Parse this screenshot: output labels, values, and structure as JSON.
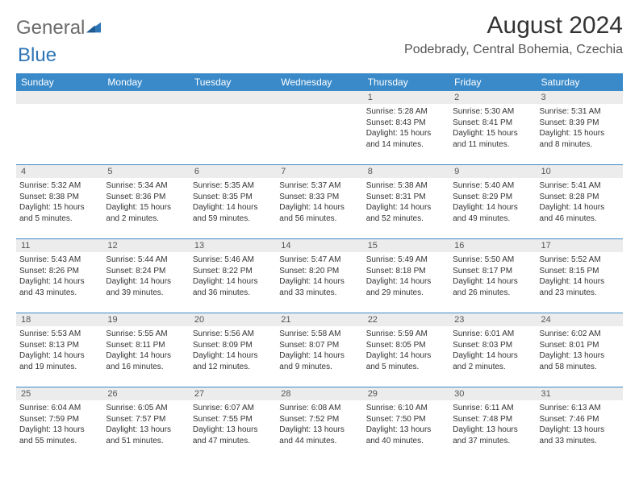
{
  "logo": {
    "general": "General",
    "blue": "Blue"
  },
  "title": "August 2024",
  "location": "Podebrady, Central Bohemia, Czechia",
  "weekdays": [
    "Sunday",
    "Monday",
    "Tuesday",
    "Wednesday",
    "Thursday",
    "Friday",
    "Saturday"
  ],
  "colors": {
    "header_bg": "#3a8ac9",
    "header_text": "#ffffff",
    "daynum_bg": "#ececec",
    "border": "#3a8ac9",
    "body_text": "#333333",
    "logo_gray": "#6b6b6b",
    "logo_blue": "#2e75b6"
  },
  "weeks": [
    [
      {
        "n": "",
        "details": ""
      },
      {
        "n": "",
        "details": ""
      },
      {
        "n": "",
        "details": ""
      },
      {
        "n": "",
        "details": ""
      },
      {
        "n": "1",
        "details": "Sunrise: 5:28 AM\nSunset: 8:43 PM\nDaylight: 15 hours and 14 minutes."
      },
      {
        "n": "2",
        "details": "Sunrise: 5:30 AM\nSunset: 8:41 PM\nDaylight: 15 hours and 11 minutes."
      },
      {
        "n": "3",
        "details": "Sunrise: 5:31 AM\nSunset: 8:39 PM\nDaylight: 15 hours and 8 minutes."
      }
    ],
    [
      {
        "n": "4",
        "details": "Sunrise: 5:32 AM\nSunset: 8:38 PM\nDaylight: 15 hours and 5 minutes."
      },
      {
        "n": "5",
        "details": "Sunrise: 5:34 AM\nSunset: 8:36 PM\nDaylight: 15 hours and 2 minutes."
      },
      {
        "n": "6",
        "details": "Sunrise: 5:35 AM\nSunset: 8:35 PM\nDaylight: 14 hours and 59 minutes."
      },
      {
        "n": "7",
        "details": "Sunrise: 5:37 AM\nSunset: 8:33 PM\nDaylight: 14 hours and 56 minutes."
      },
      {
        "n": "8",
        "details": "Sunrise: 5:38 AM\nSunset: 8:31 PM\nDaylight: 14 hours and 52 minutes."
      },
      {
        "n": "9",
        "details": "Sunrise: 5:40 AM\nSunset: 8:29 PM\nDaylight: 14 hours and 49 minutes."
      },
      {
        "n": "10",
        "details": "Sunrise: 5:41 AM\nSunset: 8:28 PM\nDaylight: 14 hours and 46 minutes."
      }
    ],
    [
      {
        "n": "11",
        "details": "Sunrise: 5:43 AM\nSunset: 8:26 PM\nDaylight: 14 hours and 43 minutes."
      },
      {
        "n": "12",
        "details": "Sunrise: 5:44 AM\nSunset: 8:24 PM\nDaylight: 14 hours and 39 minutes."
      },
      {
        "n": "13",
        "details": "Sunrise: 5:46 AM\nSunset: 8:22 PM\nDaylight: 14 hours and 36 minutes."
      },
      {
        "n": "14",
        "details": "Sunrise: 5:47 AM\nSunset: 8:20 PM\nDaylight: 14 hours and 33 minutes."
      },
      {
        "n": "15",
        "details": "Sunrise: 5:49 AM\nSunset: 8:18 PM\nDaylight: 14 hours and 29 minutes."
      },
      {
        "n": "16",
        "details": "Sunrise: 5:50 AM\nSunset: 8:17 PM\nDaylight: 14 hours and 26 minutes."
      },
      {
        "n": "17",
        "details": "Sunrise: 5:52 AM\nSunset: 8:15 PM\nDaylight: 14 hours and 23 minutes."
      }
    ],
    [
      {
        "n": "18",
        "details": "Sunrise: 5:53 AM\nSunset: 8:13 PM\nDaylight: 14 hours and 19 minutes."
      },
      {
        "n": "19",
        "details": "Sunrise: 5:55 AM\nSunset: 8:11 PM\nDaylight: 14 hours and 16 minutes."
      },
      {
        "n": "20",
        "details": "Sunrise: 5:56 AM\nSunset: 8:09 PM\nDaylight: 14 hours and 12 minutes."
      },
      {
        "n": "21",
        "details": "Sunrise: 5:58 AM\nSunset: 8:07 PM\nDaylight: 14 hours and 9 minutes."
      },
      {
        "n": "22",
        "details": "Sunrise: 5:59 AM\nSunset: 8:05 PM\nDaylight: 14 hours and 5 minutes."
      },
      {
        "n": "23",
        "details": "Sunrise: 6:01 AM\nSunset: 8:03 PM\nDaylight: 14 hours and 2 minutes."
      },
      {
        "n": "24",
        "details": "Sunrise: 6:02 AM\nSunset: 8:01 PM\nDaylight: 13 hours and 58 minutes."
      }
    ],
    [
      {
        "n": "25",
        "details": "Sunrise: 6:04 AM\nSunset: 7:59 PM\nDaylight: 13 hours and 55 minutes."
      },
      {
        "n": "26",
        "details": "Sunrise: 6:05 AM\nSunset: 7:57 PM\nDaylight: 13 hours and 51 minutes."
      },
      {
        "n": "27",
        "details": "Sunrise: 6:07 AM\nSunset: 7:55 PM\nDaylight: 13 hours and 47 minutes."
      },
      {
        "n": "28",
        "details": "Sunrise: 6:08 AM\nSunset: 7:52 PM\nDaylight: 13 hours and 44 minutes."
      },
      {
        "n": "29",
        "details": "Sunrise: 6:10 AM\nSunset: 7:50 PM\nDaylight: 13 hours and 40 minutes."
      },
      {
        "n": "30",
        "details": "Sunrise: 6:11 AM\nSunset: 7:48 PM\nDaylight: 13 hours and 37 minutes."
      },
      {
        "n": "31",
        "details": "Sunrise: 6:13 AM\nSunset: 7:46 PM\nDaylight: 13 hours and 33 minutes."
      }
    ]
  ]
}
